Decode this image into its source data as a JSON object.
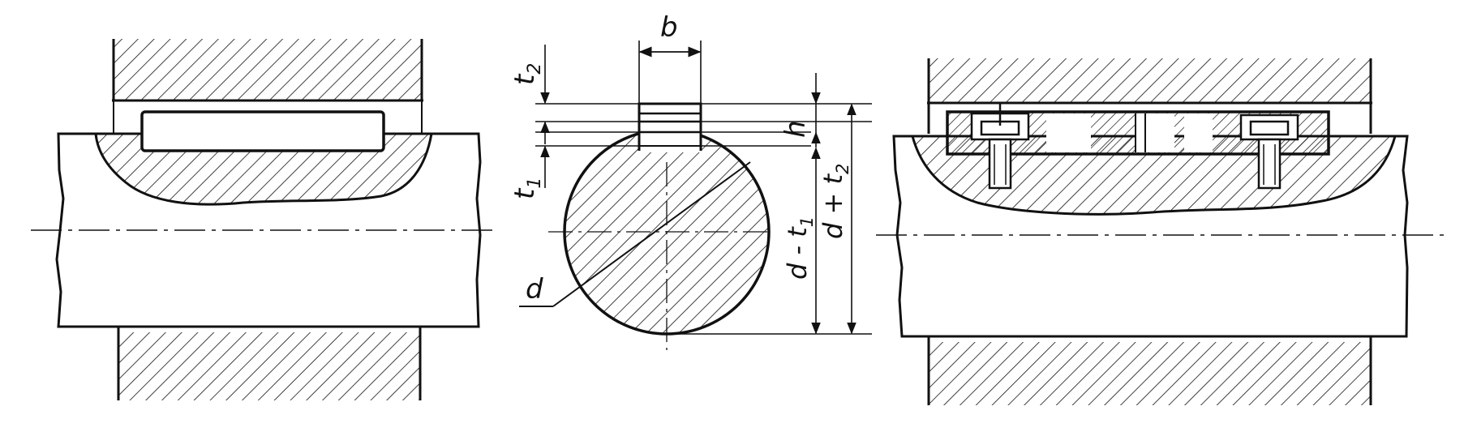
{
  "labels": {
    "b": "b",
    "t2": "t",
    "t2_sub": "2",
    "t1": "t",
    "t1_sub": "1",
    "h": "h",
    "d": "d",
    "d_minus_t1": "d - t",
    "d_minus_t1_sub": "1",
    "d_plus_t2": "d + t",
    "d_plus_t2_sub": "2"
  },
  "colors": {
    "ink": "#111111",
    "paper": "#ffffff"
  }
}
